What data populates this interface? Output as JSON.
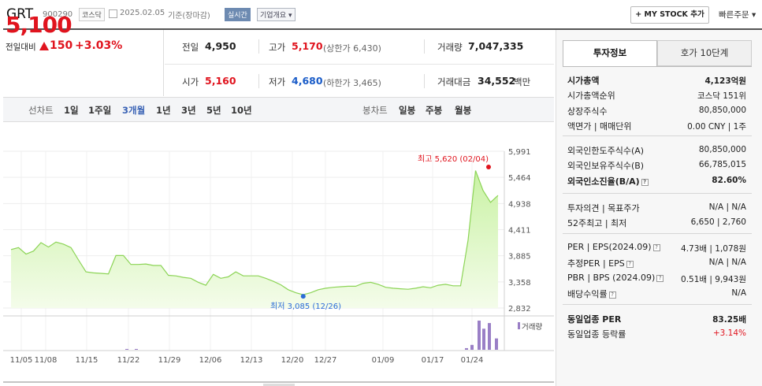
{
  "header": {
    "name": "GRT",
    "code": "900290",
    "market": "코스닥",
    "date": "2025.02.05",
    "basis": "기준(장마감)",
    "realtime": "실시간",
    "overview": "기업개요 ▾",
    "mystock": "+ MY STOCK 추가",
    "quick_order": "빠른주문 ▾"
  },
  "price": {
    "current": "5,100",
    "diff_label": "전일대비",
    "diff": "150",
    "pct": "+3.03%"
  },
  "quote": {
    "prev_label": "전일",
    "prev": "4,950",
    "high_label": "고가",
    "high": "5,170",
    "upper_limit": "(상한가 6,430)",
    "volume_label": "거래량",
    "volume": "7,047,335",
    "open_label": "시가",
    "open": "5,160",
    "low_label": "저가",
    "low": "4,680",
    "lower_limit": "(하한가 3,465)",
    "amount_label": "거래대금",
    "amount": "34,552",
    "amount_unit": "백만"
  },
  "nav": {
    "line_label": "선차트",
    "periods": [
      "1일",
      "1주일",
      "3개월",
      "1년",
      "3년",
      "5년",
      "10년"
    ],
    "active_period": "3개월",
    "candle_label": "봉차트",
    "candles": [
      "일봉",
      "주봉",
      "월봉"
    ]
  },
  "chart_data": {
    "type": "line",
    "y_ticks": [
      "5,991",
      "5,464",
      "4,938",
      "4,411",
      "3,885",
      "3,358",
      "2,832"
    ],
    "ylim": [
      2832,
      5991
    ],
    "x_ticks": [
      "11/05",
      "11/08",
      "11/15",
      "11/22",
      "11/29",
      "12/06",
      "12/13",
      "12/20",
      "12/27",
      "01/09",
      "01/17",
      "01/24"
    ],
    "series": [
      {
        "values": [
          4010,
          4050,
          3920,
          3980,
          4150,
          4060,
          4160,
          4120,
          4050,
          3800,
          3560,
          3540,
          3530,
          3520,
          3890,
          3890,
          3710,
          3710,
          3720,
          3690,
          3690,
          3490,
          3480,
          3450,
          3430,
          3350,
          3290,
          3510,
          3430,
          3460,
          3560,
          3480,
          3480,
          3480,
          3430,
          3370,
          3300,
          3200,
          3140,
          3100,
          3140,
          3200,
          3230,
          3250,
          3260,
          3270,
          3270,
          3330,
          3350,
          3310,
          3250,
          3230,
          3220,
          3210,
          3230,
          3260,
          3240,
          3290,
          3310,
          3280,
          3280,
          4200,
          5600,
          5200,
          4960,
          5100
        ]
      }
    ],
    "max_label": "최고 5,620 (02/04)",
    "min_label": "최저 3,085 (12/26)",
    "volume_label": "거래량",
    "volume_markers": [
      1,
      1,
      0,
      0,
      0,
      0,
      0,
      2,
      6,
      36,
      26,
      33,
      14
    ]
  },
  "panel": {
    "tabs": [
      "투자정보",
      "호가 10단계"
    ],
    "rows1": [
      {
        "label": "시가총액",
        "value": "4,123억원",
        "bold": true
      },
      {
        "label": "시가총액순위",
        "value": "코스닥 151위"
      },
      {
        "label": "상장주식수",
        "value": "80,850,000"
      },
      {
        "label": "액면가 | 매매단위",
        "value": "0.00 CNY | 1주"
      }
    ],
    "rows2": [
      {
        "label": "외국인한도주식수(A)",
        "value": "80,850,000"
      },
      {
        "label": "외국인보유주식수(B)",
        "value": "66,785,015"
      },
      {
        "label": "외국인소진율(B/A)",
        "value": "82.60%",
        "bold": true
      }
    ],
    "rows3": [
      {
        "label": "투자의견 | 목표주가",
        "value": "N/A | N/A"
      },
      {
        "label": "52주최고 | 최저",
        "value": "6,650 | 2,760"
      }
    ],
    "rows4": [
      {
        "label": "PER | EPS(2024.09)",
        "value": "4.73배 | 1,078원"
      },
      {
        "label": "추정PER | EPS",
        "value": "N/A | N/A"
      },
      {
        "label": "PBR | BPS (2024.09)",
        "value": "0.51배 | 9,943원"
      },
      {
        "label": "배당수익률",
        "value": "N/A"
      }
    ],
    "rows5": [
      {
        "label": "동일업종 PER",
        "value": "83.25배",
        "bold": true
      },
      {
        "label": "동일업종 등락률",
        "value": "+3.14%",
        "red": true
      }
    ]
  }
}
